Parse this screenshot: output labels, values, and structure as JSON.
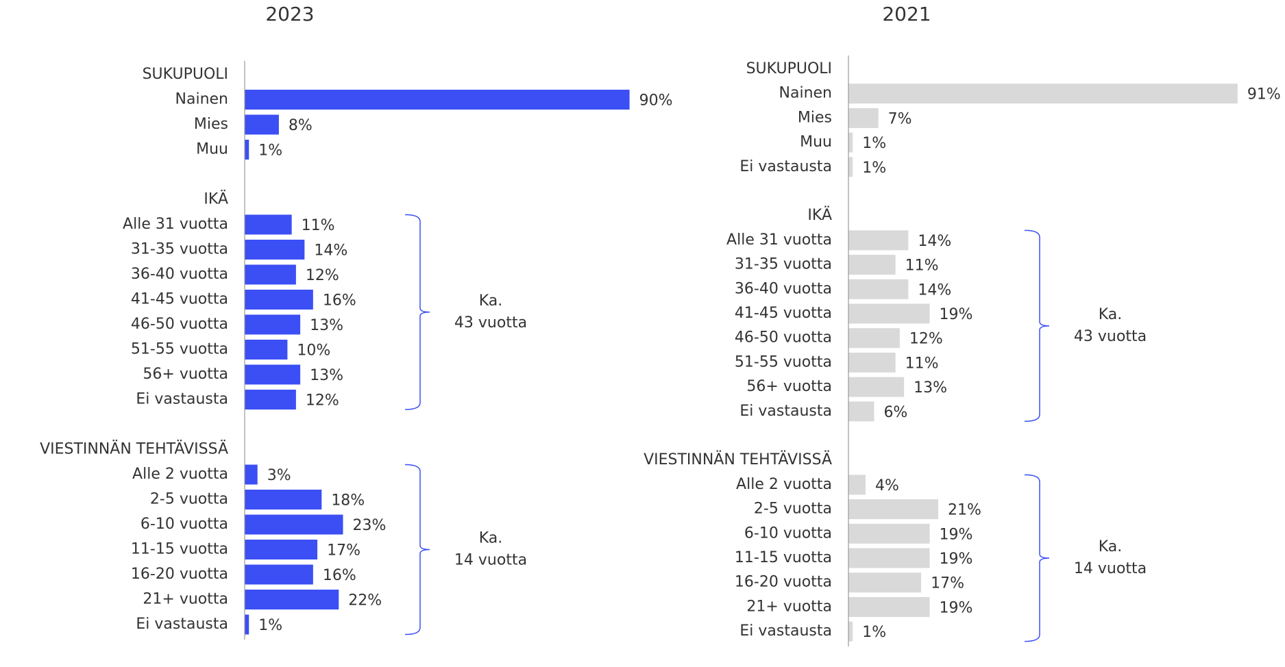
{
  "chart_data": [
    {
      "type": "bar",
      "title": "2023",
      "color": "#3b4ff5",
      "groups": [
        {
          "name": "SUKUPUOLI",
          "categories": [
            "Nainen",
            "Mies",
            "Muu"
          ],
          "values": [
            90,
            8,
            1
          ],
          "value_labels": [
            "90%",
            "8%",
            "1%"
          ]
        },
        {
          "name": "IKÄ",
          "categories": [
            "Alle 31 vuotta",
            "31-35 vuotta",
            "36-40 vuotta",
            "41-45 vuotta",
            "46-50 vuotta",
            "51-55 vuotta",
            "56+ vuotta",
            "Ei vastausta"
          ],
          "values": [
            11,
            14,
            12,
            16,
            13,
            10,
            13,
            12
          ],
          "value_labels": [
            "11%",
            "14%",
            "12%",
            "16%",
            "13%",
            "10%",
            "13%",
            "12%"
          ],
          "annotation": [
            "Ka.",
            "43 vuotta"
          ]
        },
        {
          "name": "VIESTINNÄN TEHTÄVISSÄ",
          "categories": [
            "Alle 2 vuotta",
            "2-5 vuotta",
            "6-10 vuotta",
            "11-15 vuotta",
            "16-20 vuotta",
            "21+ vuotta",
            "Ei vastausta"
          ],
          "values": [
            3,
            18,
            23,
            17,
            16,
            22,
            1
          ],
          "value_labels": [
            "3%",
            "18%",
            "23%",
            "17%",
            "16%",
            "22%",
            "1%"
          ],
          "annotation": [
            "Ka.",
            "14 vuotta"
          ]
        }
      ]
    },
    {
      "type": "bar",
      "title": "2021",
      "color": "#d9d9d9",
      "groups": [
        {
          "name": "SUKUPUOLI",
          "categories": [
            "Nainen",
            "Mies",
            "Muu",
            "Ei vastausta"
          ],
          "values": [
            91,
            7,
            1,
            1
          ],
          "value_labels": [
            "91%",
            "7%",
            "1%",
            "1%"
          ]
        },
        {
          "name": "IKÄ",
          "categories": [
            "Alle 31 vuotta",
            "31-35 vuotta",
            "36-40 vuotta",
            "41-45 vuotta",
            "46-50 vuotta",
            "51-55 vuotta",
            "56+ vuotta",
            "Ei vastausta"
          ],
          "values": [
            14,
            11,
            14,
            19,
            12,
            11,
            13,
            6
          ],
          "value_labels": [
            "14%",
            "11%",
            "14%",
            "19%",
            "12%",
            "11%",
            "13%",
            "6%"
          ],
          "annotation": [
            "Ka.",
            "43 vuotta"
          ]
        },
        {
          "name": "VIESTINNÄN TEHTÄVISSÄ",
          "categories": [
            "Alle 2 vuotta",
            "2-5 vuotta",
            "6-10 vuotta",
            "11-15 vuotta",
            "16-20 vuotta",
            "21+ vuotta",
            "Ei vastausta"
          ],
          "values": [
            4,
            21,
            19,
            19,
            17,
            19,
            1
          ],
          "value_labels": [
            "4%",
            "21%",
            "19%",
            "19%",
            "17%",
            "19%",
            "1%"
          ],
          "annotation": [
            "Ka.",
            "14 vuotta"
          ]
        }
      ]
    }
  ]
}
